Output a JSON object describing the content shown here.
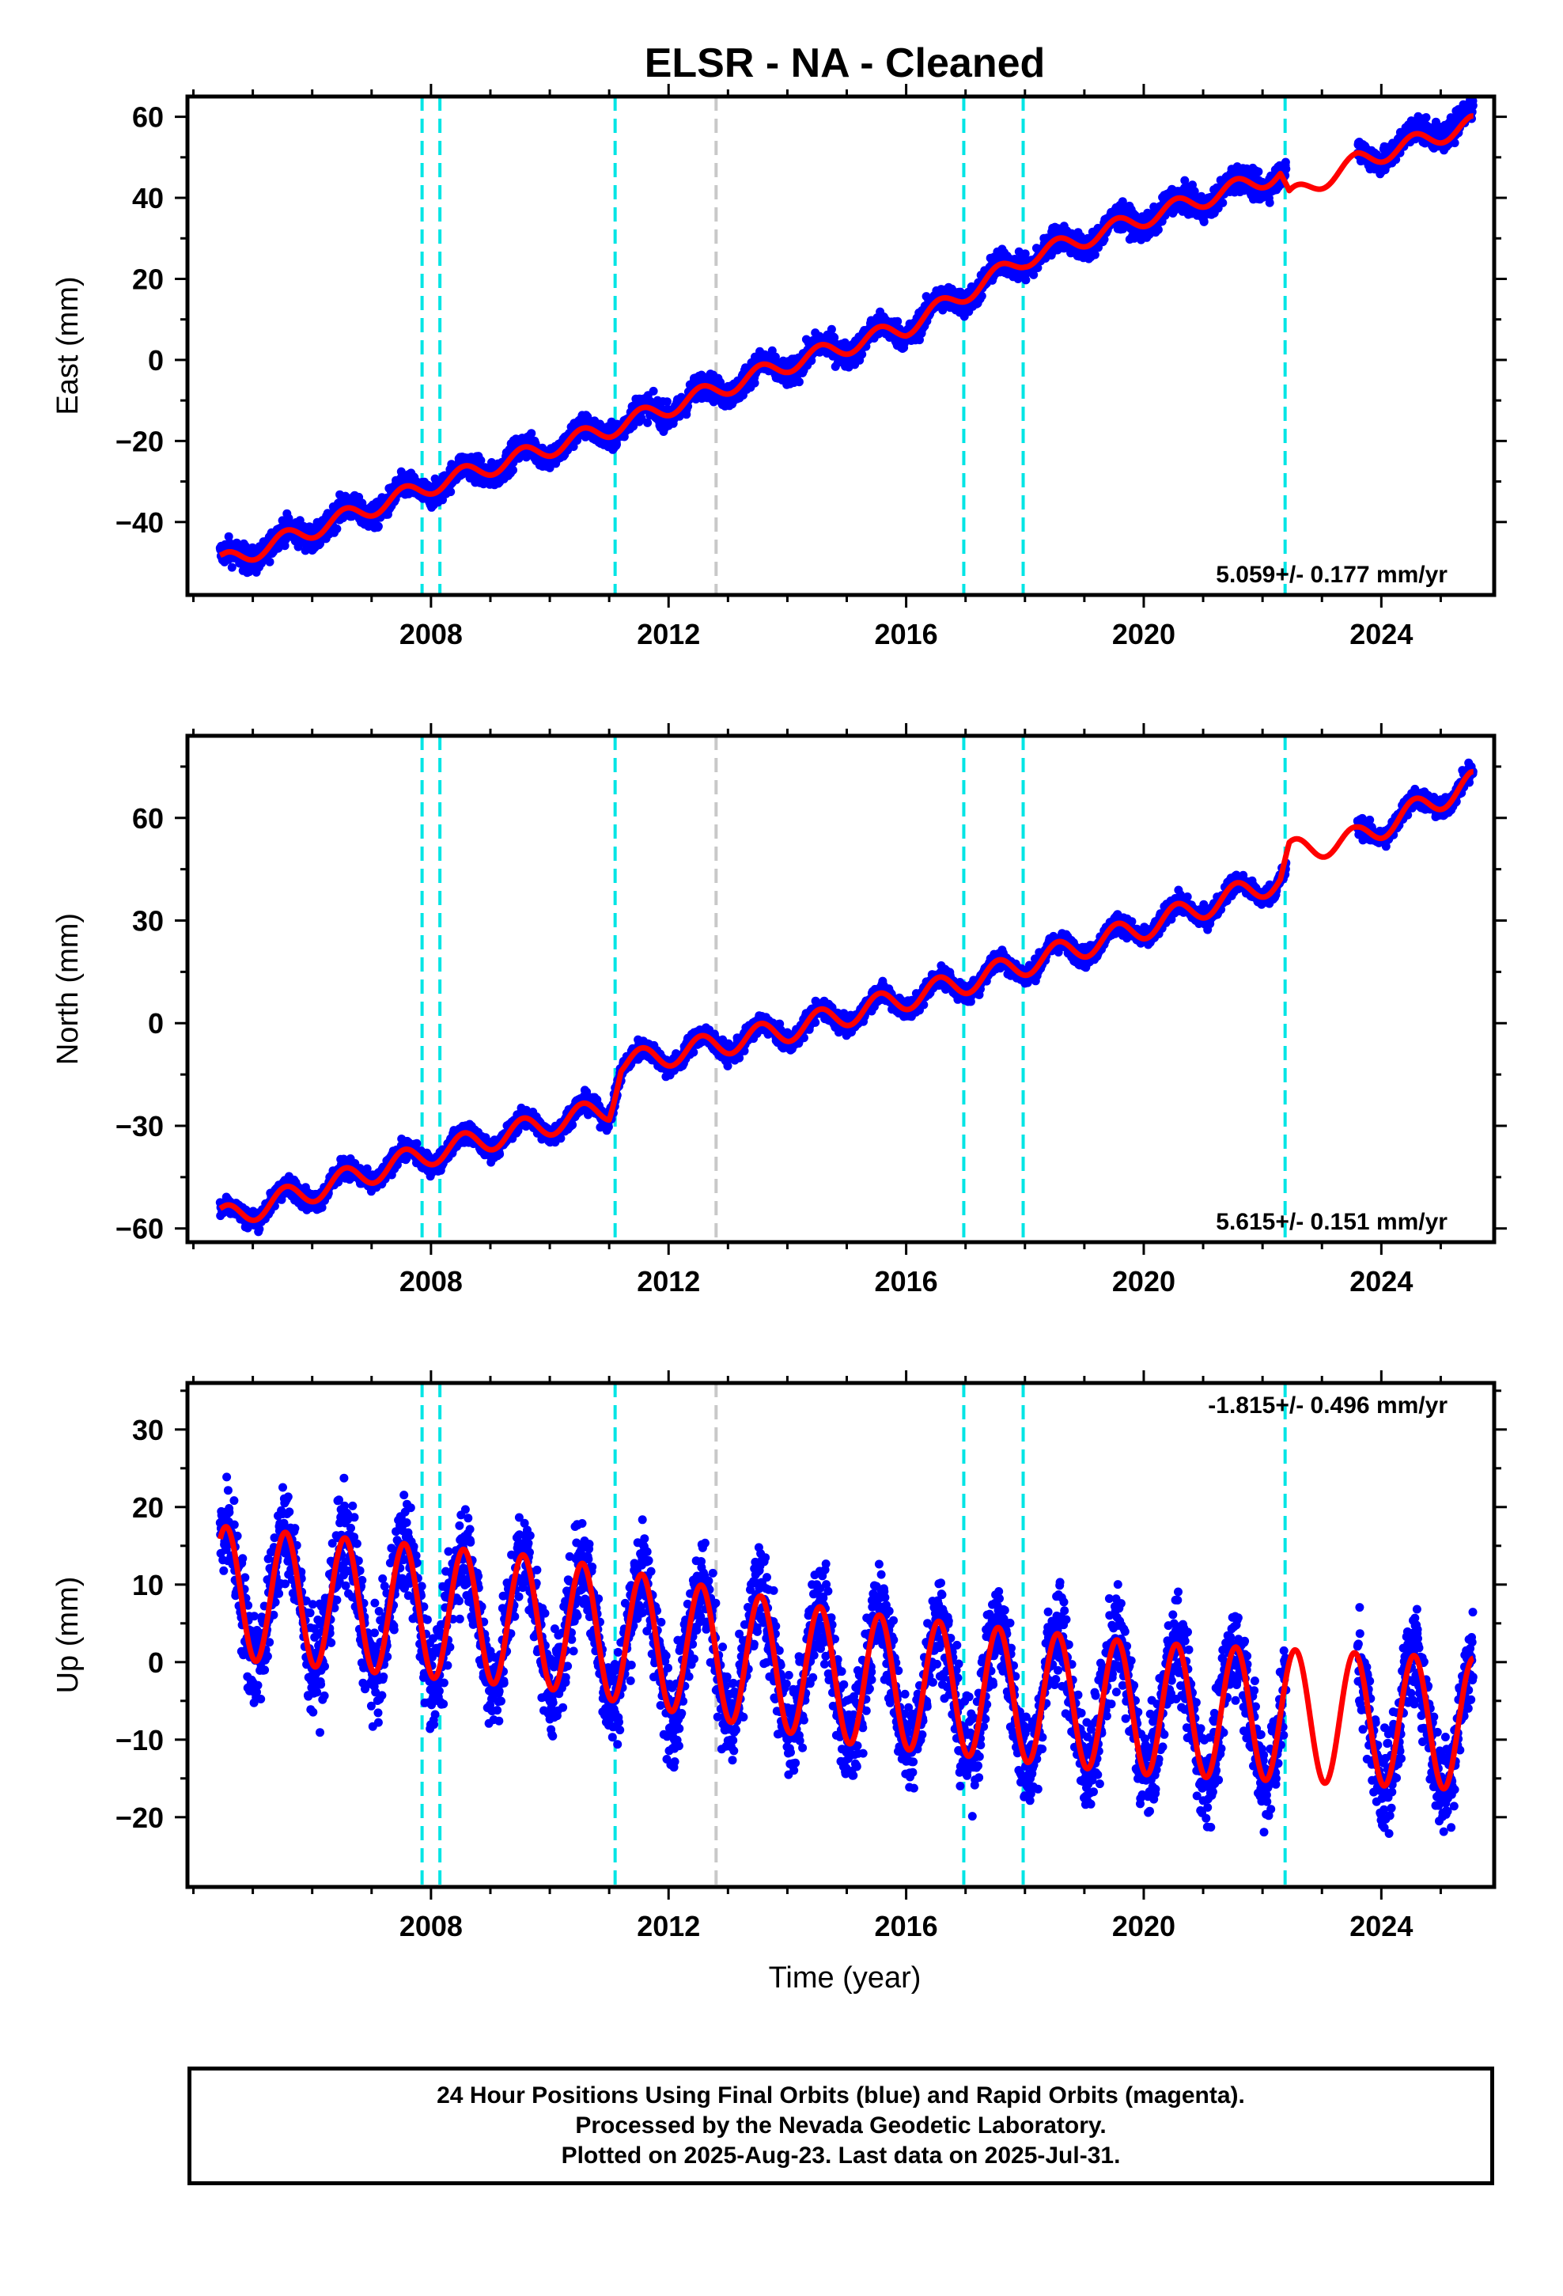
{
  "title": "ELSR  - NA - Cleaned",
  "xlabel": "Time (year)",
  "footer": {
    "line1": "24 Hour Positions Using Final Orbits (blue) and Rapid Orbits (magenta).",
    "line2": "Processed by the Nevada Geodetic Laboratory.",
    "line3": "Plotted on 2025-Aug-23. Last data on 2025-Jul-31."
  },
  "colors": {
    "data": "#0000ff",
    "fit": "#ff0000",
    "equipment_change": "#00e5e5",
    "earthquake": "#c8c8c8",
    "frame": "#000000"
  },
  "chart_data": [
    {
      "type": "scatter",
      "ylabel": "East (mm)",
      "xlim": [
        2003.9,
        2025.9
      ],
      "ylim": [
        -58,
        65
      ],
      "x_ticks": [
        "2008",
        "2012",
        "2016",
        "2020",
        "2024"
      ],
      "y_ticks": [
        -40,
        -20,
        0,
        20,
        40,
        60
      ],
      "rate": "5.059+/- 0.177 mm/yr",
      "rate_position": "bottom-right",
      "grid": false,
      "data_gap": [
        2022.4,
        2023.6
      ],
      "vlines_cyan": [
        2007.85,
        2008.15,
        2011.1,
        2016.97,
        2017.97,
        2022.38
      ],
      "vlines_gray": [
        2012.8
      ],
      "series": [
        {
          "name": "daily positions",
          "kind": "points",
          "start": 2004.45,
          "end": 2025.55,
          "trend_points": [
            [
              2004.5,
              -50
            ],
            [
              2008,
              -31
            ],
            [
              2011,
              -17
            ],
            [
              2014,
              -1
            ],
            [
              2016,
              8
            ],
            [
              2018,
              25
            ],
            [
              2020,
              35
            ],
            [
              2022.3,
              46
            ],
            [
              2023.6,
              49
            ],
            [
              2025.5,
              60
            ]
          ],
          "seasonal_amplitude": 2.5,
          "noise": 2.2
        },
        {
          "name": "model",
          "kind": "line",
          "start": 2004.45,
          "end": 2025.55,
          "trend_points": [
            [
              2004.5,
              -50
            ],
            [
              2008,
              -31
            ],
            [
              2011,
              -17
            ],
            [
              2014,
              -1
            ],
            [
              2016,
              8
            ],
            [
              2018,
              25
            ],
            [
              2020,
              35
            ],
            [
              2022.3,
              46
            ],
            [
              2022.45,
              40
            ],
            [
              2023.6,
              49
            ],
            [
              2025.5,
              58
            ]
          ],
          "seasonal_amplitude": 2.2
        }
      ]
    },
    {
      "type": "scatter",
      "ylabel": "North (mm)",
      "xlim": [
        2003.9,
        2025.9
      ],
      "ylim": [
        -64,
        84
      ],
      "x_ticks": [
        "2008",
        "2012",
        "2016",
        "2020",
        "2024"
      ],
      "y_ticks": [
        -60,
        -30,
        0,
        30,
        60
      ],
      "rate": "5.615+/- 0.151 mm/yr",
      "rate_position": "bottom-right",
      "grid": false,
      "data_gap": [
        2022.4,
        2023.6
      ],
      "vlines_cyan": [
        2007.85,
        2008.15,
        2011.1,
        2016.97,
        2017.97,
        2022.38
      ],
      "vlines_gray": [
        2012.8
      ],
      "series": [
        {
          "name": "daily positions",
          "kind": "points",
          "start": 2004.45,
          "end": 2025.55,
          "trend_points": [
            [
              2004.5,
              -57
            ],
            [
              2008,
              -38
            ],
            [
              2011,
              -25
            ],
            [
              2011.2,
              -12
            ],
            [
              2014,
              -2
            ],
            [
              2017,
              12
            ],
            [
              2020,
              28
            ],
            [
              2022.3,
              42
            ],
            [
              2023.6,
              54
            ],
            [
              2025.5,
              70
            ]
          ],
          "seasonal_amplitude": 3.5,
          "noise": 2.0
        },
        {
          "name": "model",
          "kind": "line",
          "start": 2004.45,
          "end": 2025.55,
          "trend_points": [
            [
              2004.5,
              -57
            ],
            [
              2008,
              -38
            ],
            [
              2011,
              -25
            ],
            [
              2011.2,
              -12
            ],
            [
              2014,
              -2
            ],
            [
              2017,
              12
            ],
            [
              2020,
              28
            ],
            [
              2022.3,
              42
            ],
            [
              2022.45,
              50
            ],
            [
              2023.6,
              54
            ],
            [
              2025.5,
              70
            ]
          ],
          "seasonal_amplitude": 3.5
        }
      ]
    },
    {
      "type": "scatter",
      "ylabel": "Up (mm)",
      "xlim": [
        2003.9,
        2025.9
      ],
      "ylim": [
        -29,
        36
      ],
      "x_ticks": [
        "2008",
        "2012",
        "2016",
        "2020",
        "2024"
      ],
      "y_ticks": [
        -20,
        -10,
        0,
        10,
        20,
        30
      ],
      "rate": "-1.815+/- 0.496 mm/yr",
      "rate_position": "top-right",
      "grid": false,
      "data_gap": [
        2022.4,
        2023.6
      ],
      "vlines_cyan": [
        2007.85,
        2008.15,
        2011.1,
        2016.97,
        2017.97,
        2022.38
      ],
      "vlines_gray": [
        2012.8
      ],
      "series": [
        {
          "name": "daily positions",
          "kind": "points",
          "start": 2004.45,
          "end": 2025.55,
          "trend_points": [
            [
              2004.5,
              9
            ],
            [
              2010,
              5
            ],
            [
              2015,
              -2
            ],
            [
              2020,
              -6
            ],
            [
              2025.5,
              -8
            ]
          ],
          "seasonal_amplitude": 8.5,
          "noise": 4.5
        },
        {
          "name": "model",
          "kind": "line",
          "start": 2004.45,
          "end": 2025.55,
          "trend_points": [
            [
              2004.5,
              9
            ],
            [
              2010,
              5
            ],
            [
              2015,
              -2
            ],
            [
              2020,
              -6
            ],
            [
              2025.5,
              -8
            ]
          ],
          "seasonal_amplitude": 8.5
        }
      ]
    }
  ]
}
